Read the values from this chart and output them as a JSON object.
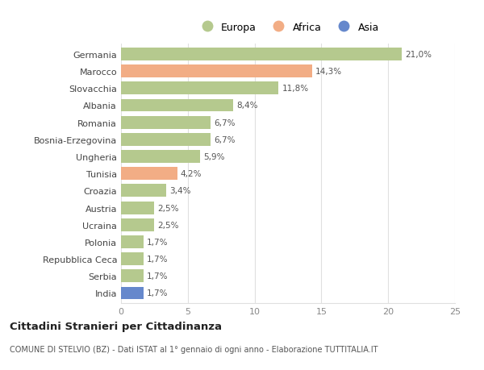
{
  "categories": [
    "Germania",
    "Marocco",
    "Slovacchia",
    "Albania",
    "Romania",
    "Bosnia-Erzegovina",
    "Ungheria",
    "Tunisia",
    "Croazia",
    "Austria",
    "Ucraina",
    "Polonia",
    "Repubblica Ceca",
    "Serbia",
    "India"
  ],
  "values": [
    21.0,
    14.3,
    11.8,
    8.4,
    6.7,
    6.7,
    5.9,
    4.2,
    3.4,
    2.5,
    2.5,
    1.7,
    1.7,
    1.7,
    1.7
  ],
  "labels": [
    "21,0%",
    "14,3%",
    "11,8%",
    "8,4%",
    "6,7%",
    "6,7%",
    "5,9%",
    "4,2%",
    "3,4%",
    "2,5%",
    "2,5%",
    "1,7%",
    "1,7%",
    "1,7%",
    "1,7%"
  ],
  "continent": [
    "Europa",
    "Africa",
    "Europa",
    "Europa",
    "Europa",
    "Europa",
    "Europa",
    "Africa",
    "Europa",
    "Europa",
    "Europa",
    "Europa",
    "Europa",
    "Europa",
    "Asia"
  ],
  "colors": {
    "Europa": "#b5c98e",
    "Africa": "#f2ad85",
    "Asia": "#6688cc"
  },
  "xlim": [
    0,
    25
  ],
  "xticks": [
    0,
    5,
    10,
    15,
    20,
    25
  ],
  "title": "Cittadini Stranieri per Cittadinanza",
  "subtitle": "COMUNE DI STELVIO (BZ) - Dati ISTAT al 1° gennaio di ogni anno - Elaborazione TUTTITALIA.IT",
  "bg_color": "#ffffff",
  "grid_color": "#e0e0e0",
  "bar_height": 0.75,
  "label_fontsize": 7.5,
  "tick_fontsize": 8.0
}
